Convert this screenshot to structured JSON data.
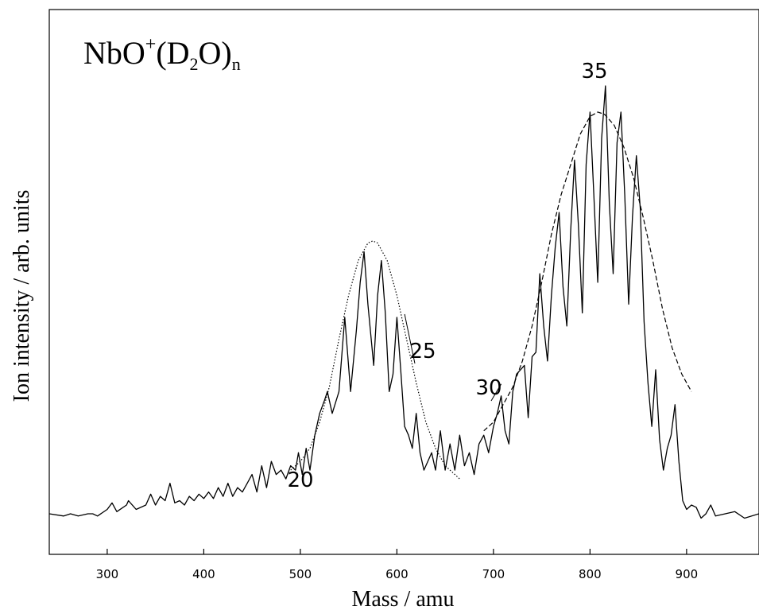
{
  "chart_data": {
    "type": "line",
    "title_main": "NbO",
    "title_sup": "+",
    "title_open": "(D",
    "title_sub2": "2",
    "title_close": "O)",
    "title_subn": "n",
    "xlabel": "Mass / amu",
    "ylabel": "Ion intensity / arb. units",
    "xlim": [
      240,
      975
    ],
    "ylim": [
      0,
      1
    ],
    "xticks": [
      300,
      400,
      500,
      600,
      700,
      800,
      900
    ],
    "grid": false,
    "spectrum": {
      "x": [
        240,
        255,
        262,
        270,
        280,
        285,
        290,
        300,
        305,
        310,
        320,
        322,
        330,
        340,
        345,
        350,
        355,
        360,
        365,
        370,
        375,
        380,
        385,
        390,
        395,
        400,
        405,
        410,
        415,
        420,
        425,
        430,
        435,
        440,
        445,
        450,
        455,
        460,
        465,
        470,
        475,
        480,
        485,
        490,
        495,
        498,
        502,
        506,
        510,
        515,
        520,
        525,
        528,
        533,
        540,
        546,
        552,
        558,
        562,
        566,
        570,
        576,
        580,
        584,
        588,
        592,
        596,
        600,
        604,
        608,
        612,
        616,
        620,
        624,
        628,
        632,
        636,
        640,
        645,
        650,
        655,
        660,
        665,
        670,
        675,
        680,
        685,
        690,
        695,
        700,
        704,
        708,
        712,
        716,
        720,
        724,
        728,
        732,
        736,
        740,
        744,
        748,
        752,
        756,
        760,
        764,
        768,
        772,
        776,
        780,
        784,
        788,
        792,
        796,
        800,
        804,
        808,
        812,
        816,
        820,
        824,
        828,
        832,
        836,
        840,
        844,
        848,
        852,
        856,
        860,
        864,
        868,
        872,
        876,
        880,
        884,
        888,
        892,
        896,
        900,
        905,
        910,
        915,
        920,
        925,
        930,
        940,
        950,
        960,
        975
      ],
      "y": [
        0.02,
        0.015,
        0.02,
        0.015,
        0.02,
        0.02,
        0.015,
        0.03,
        0.045,
        0.025,
        0.04,
        0.05,
        0.03,
        0.04,
        0.065,
        0.04,
        0.06,
        0.05,
        0.09,
        0.045,
        0.05,
        0.04,
        0.06,
        0.05,
        0.065,
        0.055,
        0.07,
        0.055,
        0.08,
        0.06,
        0.09,
        0.06,
        0.08,
        0.07,
        0.09,
        0.11,
        0.07,
        0.13,
        0.08,
        0.14,
        0.11,
        0.12,
        0.1,
        0.13,
        0.12,
        0.16,
        0.11,
        0.17,
        0.12,
        0.2,
        0.25,
        0.28,
        0.3,
        0.25,
        0.3,
        0.47,
        0.3,
        0.44,
        0.55,
        0.62,
        0.5,
        0.36,
        0.52,
        0.6,
        0.48,
        0.3,
        0.34,
        0.47,
        0.35,
        0.22,
        0.2,
        0.17,
        0.25,
        0.16,
        0.12,
        0.14,
        0.16,
        0.12,
        0.21,
        0.12,
        0.18,
        0.12,
        0.2,
        0.13,
        0.16,
        0.11,
        0.18,
        0.2,
        0.16,
        0.22,
        0.25,
        0.29,
        0.21,
        0.18,
        0.3,
        0.34,
        0.35,
        0.36,
        0.24,
        0.38,
        0.39,
        0.57,
        0.45,
        0.37,
        0.52,
        0.63,
        0.71,
        0.54,
        0.45,
        0.67,
        0.83,
        0.68,
        0.48,
        0.82,
        0.94,
        0.75,
        0.55,
        0.88,
        1.0,
        0.73,
        0.57,
        0.87,
        0.94,
        0.75,
        0.5,
        0.7,
        0.84,
        0.72,
        0.46,
        0.32,
        0.22,
        0.35,
        0.19,
        0.12,
        0.17,
        0.2,
        0.27,
        0.14,
        0.05,
        0.03,
        0.04,
        0.035,
        0.01,
        0.02,
        0.04,
        0.015,
        0.02,
        0.025,
        0.01,
        0.02
      ]
    },
    "envelope_small": {
      "x": [
        490,
        500,
        510,
        520,
        530,
        540,
        550,
        560,
        570,
        575,
        580,
        590,
        600,
        610,
        620,
        630,
        640,
        650,
        660,
        665
      ],
      "y": [
        0.12,
        0.14,
        0.17,
        0.23,
        0.31,
        0.42,
        0.52,
        0.6,
        0.64,
        0.645,
        0.64,
        0.6,
        0.52,
        0.42,
        0.32,
        0.23,
        0.17,
        0.13,
        0.11,
        0.1
      ]
    },
    "envelope_large": {
      "x": [
        690,
        700,
        710,
        720,
        730,
        740,
        750,
        760,
        770,
        780,
        790,
        800,
        808,
        815,
        825,
        835,
        845,
        855,
        865,
        875,
        885,
        895,
        905
      ],
      "y": [
        0.21,
        0.23,
        0.27,
        0.31,
        0.37,
        0.45,
        0.55,
        0.66,
        0.75,
        0.82,
        0.89,
        0.93,
        0.94,
        0.935,
        0.91,
        0.86,
        0.79,
        0.7,
        0.6,
        0.49,
        0.4,
        0.34,
        0.3
      ]
    },
    "annotations": [
      {
        "label": "20",
        "x": 498,
        "y": 0.16
      },
      {
        "label": "25",
        "x": 608,
        "y": 0.47
      },
      {
        "label": "30",
        "x": 708,
        "y": 0.31
      },
      {
        "label": "35",
        "x": 808,
        "y": 1.0
      }
    ]
  }
}
